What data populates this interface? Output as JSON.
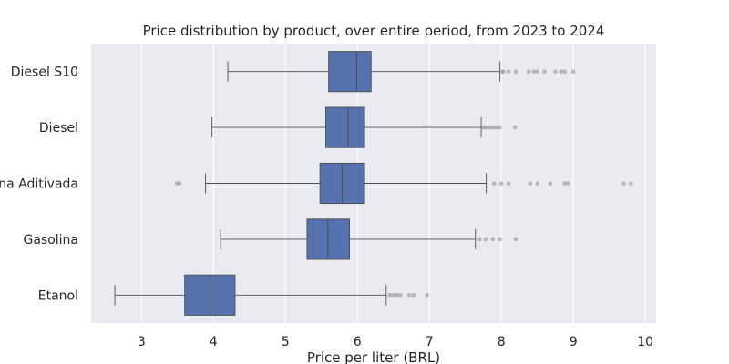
{
  "chart_data": {
    "type": "boxplot",
    "title": "Price distribution by product, over entire period, from 2023 to 2024",
    "xlabel": "Price per liter (BRL)",
    "ylabel": "",
    "xlim": [
      2.3,
      10.15
    ],
    "xticks": [
      3,
      4,
      5,
      6,
      7,
      8,
      9,
      10
    ],
    "grid": true,
    "colors": {
      "box": "#5572ae",
      "background": "#eaeaf2",
      "line": "#4d4d4d",
      "flier": "#8c8c8c"
    },
    "categories": [
      "Diesel S10",
      "Diesel",
      "Gasolina Aditivada",
      "Gasolina",
      "Etanol"
    ],
    "boxes": [
      {
        "label": "Diesel S10",
        "whisker_low": 4.2,
        "q1": 5.6,
        "median": 5.99,
        "q3": 6.19,
        "whisker_high": 7.98,
        "outliers": [
          8.0,
          8.03,
          8.1,
          8.2,
          8.38,
          8.45,
          8.5,
          8.6,
          8.75,
          8.83,
          8.88,
          9.0
        ]
      },
      {
        "label": "Diesel",
        "whisker_low": 3.98,
        "q1": 5.56,
        "median": 5.87,
        "q3": 6.1,
        "whisker_high": 7.72,
        "outliers": [
          7.75,
          7.78,
          7.82,
          7.86,
          7.9,
          7.94,
          7.98,
          8.19
        ]
      },
      {
        "label": "Gasolina Aditivada",
        "whisker_low": 3.89,
        "q1": 5.48,
        "median": 5.79,
        "q3": 6.1,
        "whisker_high": 7.79,
        "outliers": [
          3.49,
          3.53,
          7.9,
          8.0,
          8.1,
          8.4,
          8.5,
          8.68,
          8.88,
          8.93,
          9.7,
          9.8
        ]
      },
      {
        "label": "Gasolina",
        "whisker_low": 4.1,
        "q1": 5.3,
        "median": 5.59,
        "q3": 5.89,
        "whisker_high": 7.64,
        "outliers": [
          7.7,
          7.78,
          7.88,
          7.98,
          8.2
        ]
      },
      {
        "label": "Etanol",
        "whisker_low": 2.63,
        "q1": 3.6,
        "median": 3.95,
        "q3": 4.3,
        "whisker_high": 6.4,
        "outliers": [
          6.45,
          6.5,
          6.55,
          6.6,
          6.72,
          6.78,
          6.97
        ]
      }
    ]
  }
}
